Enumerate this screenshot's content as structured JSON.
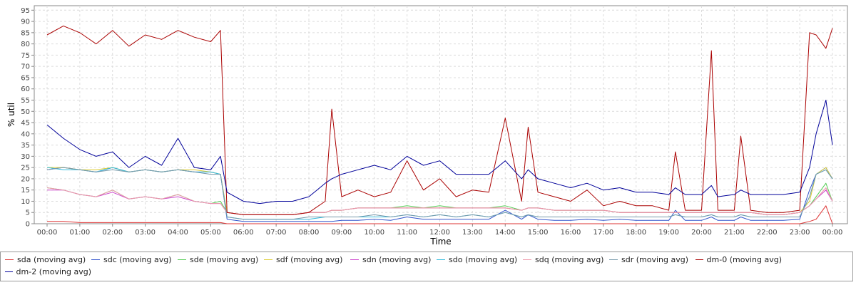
{
  "chart_data": {
    "type": "line",
    "xlabel": "Time",
    "ylabel": "% util",
    "ylim": [
      0,
      97
    ],
    "yticks": [
      0,
      5,
      10,
      15,
      20,
      25,
      30,
      35,
      40,
      45,
      50,
      55,
      60,
      65,
      70,
      75,
      80,
      85,
      90,
      95
    ],
    "xlim": [
      0,
      24.2
    ],
    "xticks": [
      "00:00",
      "01:00",
      "02:00",
      "03:00",
      "04:00",
      "05:00",
      "06:00",
      "07:00",
      "08:00",
      "09:00",
      "10:00",
      "11:00",
      "12:00",
      "13:00",
      "14:00",
      "15:00",
      "16:00",
      "17:00",
      "18:00",
      "19:00",
      "20:00",
      "21:00",
      "22:00",
      "23:00",
      "00:00"
    ],
    "grid": true,
    "legend_position": "bottom",
    "x_hours": [
      0,
      0.5,
      1,
      1.5,
      2,
      2.5,
      3,
      3.5,
      4,
      4.5,
      5,
      5.3,
      5.5,
      6,
      6.5,
      7,
      7.5,
      8,
      8.5,
      8.7,
      9,
      9.5,
      10,
      10.5,
      11,
      11.5,
      12,
      12.5,
      13,
      13.5,
      14,
      14.5,
      14.7,
      15,
      15.5,
      16,
      16.5,
      17,
      17.5,
      18,
      18.5,
      19,
      19.2,
      19.5,
      20,
      20.3,
      20.5,
      21,
      21.2,
      21.5,
      22,
      22.5,
      23,
      23.3,
      23.5,
      23.8,
      24
    ],
    "series": [
      {
        "name": "sda (moving avg)",
        "color": "#dd3333",
        "values": [
          1,
          1,
          0.5,
          0.5,
          0.5,
          0.5,
          0.5,
          0.5,
          0.5,
          0.5,
          0.5,
          0.5,
          0,
          0,
          0,
          0,
          0,
          0,
          0,
          0,
          0,
          0,
          0,
          0,
          0,
          0,
          0,
          0,
          0,
          0,
          0,
          0,
          0,
          0,
          0,
          0,
          0,
          0,
          0,
          0,
          0,
          0,
          0,
          0,
          0,
          0,
          0,
          0,
          0,
          0,
          0,
          0,
          0,
          1,
          2,
          8,
          0
        ]
      },
      {
        "name": "sdc (moving avg)",
        "color": "#3355cc",
        "values": [
          24,
          25,
          24,
          23,
          25,
          23,
          24,
          23,
          24,
          23,
          23,
          22,
          2,
          1,
          1,
          1,
          1,
          1,
          1,
          1,
          1.5,
          1.5,
          2,
          1.5,
          3,
          2,
          2,
          2,
          2,
          2,
          6,
          2,
          4,
          2,
          1.5,
          1.5,
          2,
          1.5,
          2,
          1.5,
          1.5,
          1.5,
          6,
          1.5,
          1.5,
          3,
          1.5,
          1.5,
          3,
          1.5,
          1.5,
          1.5,
          2,
          15,
          22,
          25,
          20
        ]
      },
      {
        "name": "sde (moving avg)",
        "color": "#55cc55",
        "values": [
          16,
          15,
          13,
          12,
          15,
          11,
          12,
          11,
          13,
          10,
          9,
          10,
          5,
          4,
          4,
          4,
          4,
          5,
          5,
          6,
          6,
          7,
          7,
          7,
          8,
          7,
          8,
          7,
          7,
          7,
          8,
          6,
          7,
          7,
          6,
          6,
          6,
          6,
          5,
          5,
          5,
          5,
          5,
          5,
          5,
          5,
          5,
          5,
          5,
          5,
          4,
          4,
          5,
          8,
          12,
          18,
          10
        ]
      },
      {
        "name": "sdf (moving avg)",
        "color": "#ddcc33",
        "values": [
          25,
          25,
          24,
          24,
          25,
          23,
          24,
          23,
          24,
          24,
          23,
          22,
          5,
          4,
          4,
          4,
          4,
          5,
          5,
          6,
          6,
          7,
          7,
          7,
          7,
          7,
          7,
          7,
          7,
          7,
          7,
          6,
          7,
          7,
          6,
          6,
          6,
          6,
          5,
          5,
          5,
          5,
          5,
          5,
          5,
          5,
          5,
          5,
          5,
          5,
          4,
          4,
          5,
          10,
          22,
          25,
          20
        ]
      },
      {
        "name": "sdn (moving avg)",
        "color": "#cc44cc",
        "values": [
          15,
          15,
          13,
          12,
          14,
          11,
          12,
          11,
          12,
          10,
          9,
          9,
          5,
          4,
          4,
          4,
          4,
          5,
          5,
          6,
          6,
          7,
          7,
          7,
          7,
          7,
          7,
          7,
          7,
          7,
          7,
          6,
          7,
          7,
          6,
          6,
          6,
          6,
          5,
          5,
          5,
          5,
          5,
          5,
          5,
          5,
          5,
          5,
          5,
          5,
          4,
          4,
          5,
          8,
          11,
          15,
          10
        ]
      },
      {
        "name": "sdo (moving avg)",
        "color": "#33bbdd",
        "values": [
          25,
          24,
          24,
          23,
          25,
          23,
          24,
          23,
          24,
          23,
          23,
          22,
          3,
          2,
          2,
          2,
          2,
          2,
          3,
          3,
          3,
          3,
          3,
          3,
          4,
          3,
          4,
          3,
          4,
          3,
          5,
          3,
          4,
          3,
          3,
          3,
          3,
          3,
          3,
          3,
          3,
          3,
          4,
          3,
          3,
          4,
          3,
          3,
          4,
          3,
          3,
          3,
          3,
          12,
          22,
          24,
          20
        ]
      },
      {
        "name": "sdq (moving avg)",
        "color": "#ee99aa",
        "values": [
          16,
          15,
          13,
          12,
          15,
          11,
          12,
          11,
          13,
          10,
          9,
          9,
          5,
          4,
          4,
          4,
          4,
          5,
          5,
          6,
          6,
          7,
          7,
          7,
          7,
          7,
          7,
          7,
          7,
          7,
          7,
          6,
          7,
          7,
          6,
          6,
          6,
          6,
          5,
          5,
          5,
          5,
          5,
          5,
          5,
          5,
          5,
          5,
          5,
          5,
          4,
          4,
          5,
          8,
          11,
          16,
          10
        ]
      },
      {
        "name": "sdr (moving avg)",
        "color": "#7799aa",
        "values": [
          24,
          25,
          24,
          23,
          24,
          23,
          24,
          23,
          24,
          23,
          22,
          22,
          3,
          2,
          2,
          2,
          2,
          3,
          3,
          3,
          3,
          3,
          4,
          3,
          4,
          3,
          4,
          3,
          4,
          3,
          5,
          3,
          4,
          3,
          3,
          3,
          3,
          3,
          3,
          3,
          3,
          3,
          4,
          3,
          3,
          4,
          3,
          3,
          4,
          3,
          3,
          3,
          3,
          12,
          22,
          24,
          20
        ]
      },
      {
        "name": "dm-0 (moving avg)",
        "color": "#aa0000",
        "values": [
          84,
          88,
          85,
          80,
          86,
          79,
          84,
          82,
          86,
          83,
          81,
          86,
          5,
          4,
          4,
          4,
          4,
          5,
          10,
          51,
          12,
          15,
          12,
          14,
          28,
          15,
          20,
          12,
          15,
          14,
          47,
          10,
          43,
          14,
          12,
          10,
          15,
          8,
          10,
          8,
          8,
          6,
          32,
          6,
          6,
          77,
          6,
          6,
          39,
          6,
          5,
          5,
          6,
          85,
          84,
          78,
          87
        ]
      },
      {
        "name": "dm-2 (moving avg)",
        "color": "#000099",
        "values": [
          44,
          38,
          33,
          30,
          32,
          25,
          30,
          26,
          38,
          25,
          24,
          30,
          14,
          10,
          9,
          10,
          10,
          12,
          18,
          20,
          22,
          24,
          26,
          24,
          30,
          26,
          28,
          22,
          22,
          22,
          28,
          20,
          24,
          20,
          18,
          16,
          18,
          15,
          16,
          14,
          14,
          13,
          16,
          13,
          13,
          17,
          12,
          13,
          15,
          13,
          13,
          13,
          14,
          25,
          40,
          55,
          35
        ]
      }
    ]
  }
}
